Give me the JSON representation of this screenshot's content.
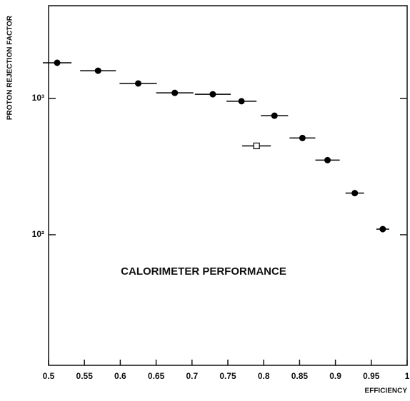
{
  "chart_data": {
    "type": "scatter",
    "annotation": "CALORIMETER PERFORMANCE",
    "xlabel": "EFFICIENCY",
    "ylabel": "PROTON REJECTION FACTOR",
    "ylog": true,
    "xlim": [
      0.5,
      1
    ],
    "ylim": [
      11,
      4800
    ],
    "xticks": [
      0.5,
      0.55,
      0.6,
      0.65,
      0.7,
      0.75,
      0.8,
      0.85,
      0.9,
      0.95,
      1
    ],
    "yticks": [
      {
        "value": 100,
        "label": "10²"
      },
      {
        "value": 1000,
        "label": "10³"
      }
    ],
    "series": [
      {
        "color": "#000000",
        "marker": "circle",
        "filled": true,
        "x": [
          0.512,
          0.569,
          0.625,
          0.676,
          0.729,
          0.769,
          0.815,
          0.854,
          0.889,
          0.927,
          0.966
        ],
        "values": [
          1830,
          1600,
          1290,
          1100,
          1075,
          955,
          748,
          513,
          353,
          202,
          110
        ],
        "xerr": [
          0.02,
          0.025,
          0.026,
          0.026,
          0.025,
          0.021,
          0.019,
          0.018,
          0.017,
          0.013,
          0.009
        ]
      },
      {
        "color": "#000000",
        "marker": "square",
        "filled": false,
        "x": [
          0.79
        ],
        "values": [
          449
        ],
        "xerr": [
          0.02
        ]
      }
    ]
  }
}
